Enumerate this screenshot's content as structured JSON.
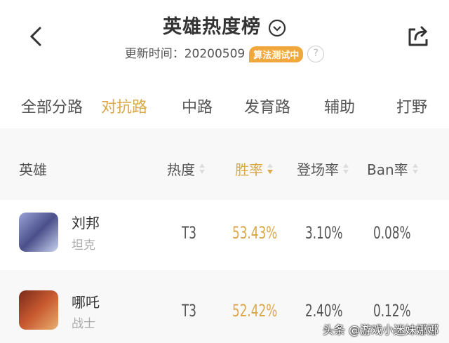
{
  "header": {
    "title": "英雄热度榜",
    "update_label": "更新时间：",
    "update_date": "20200509",
    "badge": "算法测试中",
    "help": "?"
  },
  "tabs": [
    {
      "label": "全部分路"
    },
    {
      "label": "对抗路",
      "active": true
    },
    {
      "label": "中路"
    },
    {
      "label": "发育路"
    },
    {
      "label": "辅助"
    },
    {
      "label": "打野"
    }
  ],
  "columns": {
    "hero": "英雄",
    "heat": "热度",
    "win": "胜率",
    "pick": "登场率",
    "ban": "Ban率"
  },
  "rows": [
    {
      "name": "刘邦",
      "role": "坦克",
      "heat": "T3",
      "win": "53.43%",
      "pick": "3.10%",
      "ban": "0.08%"
    },
    {
      "name": "哪吒",
      "role": "战士",
      "heat": "T3",
      "win": "52.42%",
      "pick": "2.40%",
      "ban": "0.12%"
    }
  ],
  "watermark": "头条 @游戏小迷妹娜娜",
  "colors": {
    "accent": "#d9a84a",
    "badge": "#f0a83c"
  }
}
